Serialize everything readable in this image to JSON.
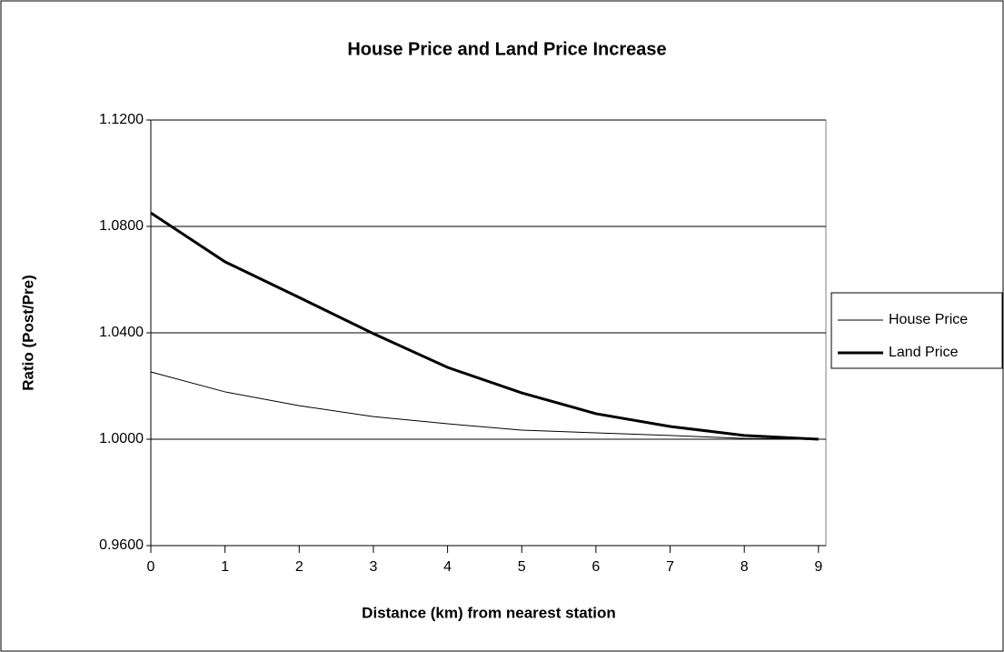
{
  "chart_data": {
    "type": "line",
    "title": "House Price and Land Price Increase",
    "x_label": "Distance (km) from nearest station",
    "y_label": "Ratio (Post/Pre)",
    "x": [
      0,
      1,
      2,
      3,
      4,
      5,
      6,
      7,
      8,
      9
    ],
    "series": [
      {
        "name": "House Price",
        "color": "#000000",
        "width": 1,
        "values": [
          1.0253,
          1.0178,
          1.0126,
          1.0085,
          1.0058,
          1.0034,
          1.0024,
          1.0014,
          1.0003,
          1.0
        ]
      },
      {
        "name": "Land Price",
        "color": "#000000",
        "width": 3,
        "values": [
          1.0851,
          1.0667,
          1.0533,
          1.0397,
          1.027,
          1.0174,
          1.0096,
          1.0048,
          1.0014,
          1.0
        ]
      }
    ],
    "xlim": [
      0,
      9.1
    ],
    "xticks": [
      0,
      1,
      2,
      3,
      4,
      5,
      6,
      7,
      8,
      9
    ],
    "ylim": [
      0.96,
      1.12
    ],
    "yticks": [
      {
        "value": 0.96,
        "label": "0.9600"
      },
      {
        "value": 1.0,
        "label": "1.0000"
      },
      {
        "value": 1.04,
        "label": "1.0400"
      },
      {
        "value": 1.08,
        "label": "1.0800"
      },
      {
        "value": 1.12,
        "label": "1.1200"
      }
    ],
    "grid": true,
    "legend": "right"
  }
}
